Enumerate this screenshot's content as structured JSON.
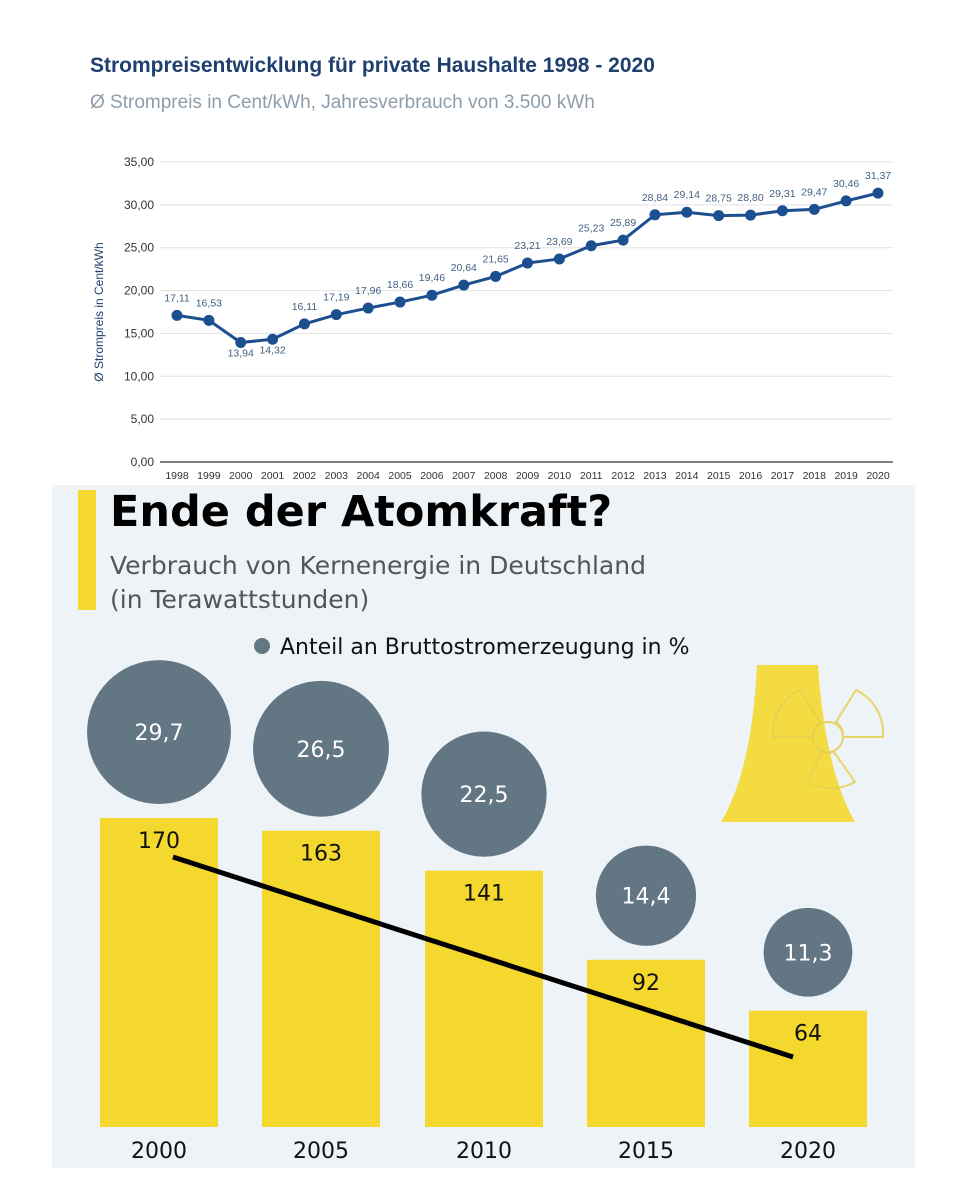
{
  "chart_data": [
    {
      "type": "line",
      "title": "Strompreisentwicklung für private Haushalte 1998 - 2020",
      "subtitle": "Ø Strompreis in Cent/kWh, Jahresverbrauch von 3.500 kWh",
      "ylabel": "Ø Strompreis in Cent/kWh",
      "xlabel": "",
      "ylim": [
        0,
        35
      ],
      "yticks": [
        "0,00",
        "5,00",
        "10,00",
        "15,00",
        "20,00",
        "25,00",
        "30,00",
        "35,00"
      ],
      "grid": true,
      "x": [
        "1998",
        "1999",
        "2000",
        "2001",
        "2002",
        "2003",
        "2004",
        "2005",
        "2006",
        "2007",
        "2008",
        "2009",
        "2010",
        "2011",
        "2012",
        "2013",
        "2014",
        "2015",
        "2016",
        "2017",
        "2018",
        "2019",
        "2020"
      ],
      "values": [
        17.11,
        16.53,
        13.94,
        14.32,
        16.11,
        17.19,
        17.96,
        18.66,
        19.46,
        20.64,
        21.65,
        23.21,
        23.69,
        25.23,
        25.89,
        28.84,
        29.14,
        28.75,
        28.8,
        29.31,
        29.47,
        30.46,
        31.37
      ],
      "labels": [
        "17,11",
        "16,53",
        "13,94",
        "14,32",
        "16,11",
        "17,19",
        "17,96",
        "18,66",
        "19,46",
        "20,64",
        "21,65",
        "23,21",
        "23,69",
        "25,23",
        "25,89",
        "28,84",
        "29,14",
        "28,75",
        "28,80",
        "29,31",
        "29,47",
        "30,46",
        "31,37"
      ],
      "color": "#1c4f8f"
    },
    {
      "type": "bar",
      "title": "Ende der Atomkraft?",
      "subtitle_line1": "Verbrauch von Kernenergie in Deutschland",
      "subtitle_line2": "(in Terawattstunden)",
      "legend": "Anteil an Bruttostromerzeugung in %",
      "categories": [
        "2000",
        "2005",
        "2010",
        "2015",
        "2020"
      ],
      "values": [
        170,
        163,
        141,
        92,
        64
      ],
      "value_labels": [
        "170",
        "163",
        "141",
        "92",
        "64"
      ],
      "share_values": [
        29.7,
        26.5,
        22.5,
        14.4,
        11.3
      ],
      "share_labels": [
        "29,7",
        "26,5",
        "22,5",
        "14,4",
        "11,3"
      ],
      "trend_line": true,
      "bar_color": "#f5d82e",
      "circle_color": "#637684",
      "background": "#eef3f7",
      "icon": "nuclear-cooling-tower-radiation-icon"
    }
  ]
}
